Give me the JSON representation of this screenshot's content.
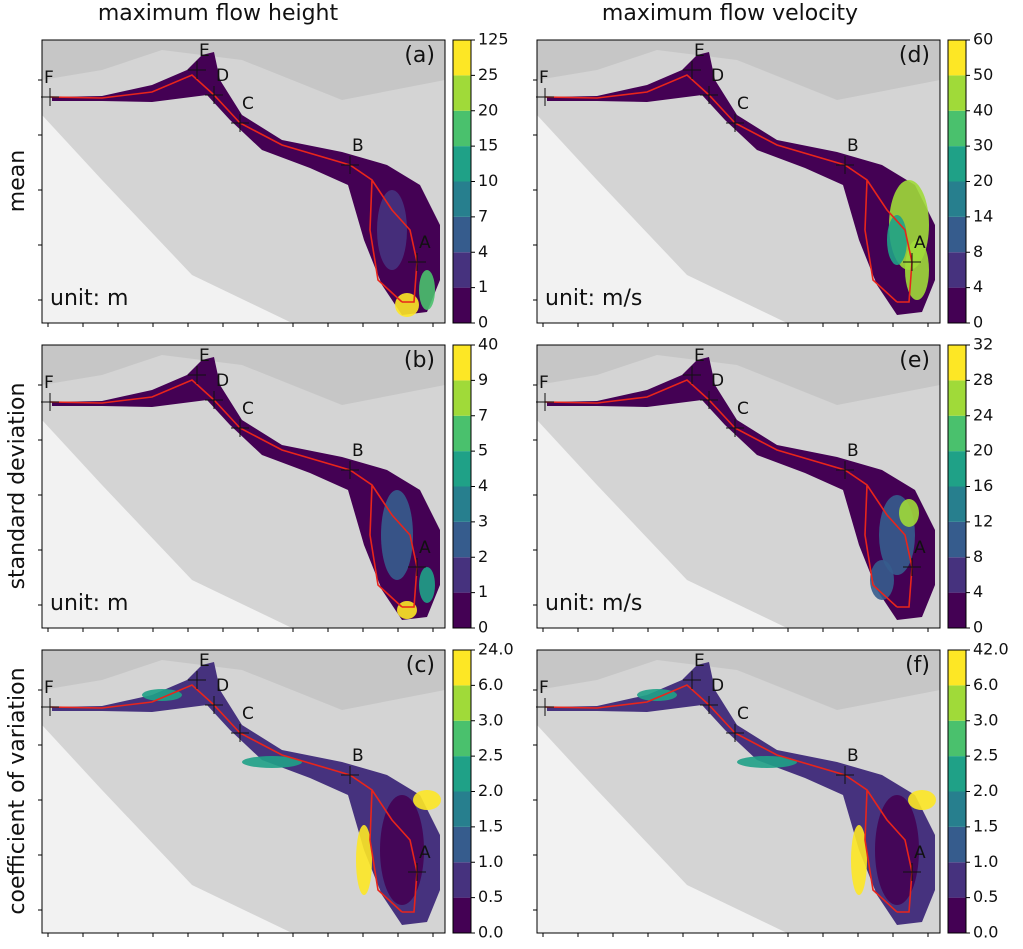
{
  "column_titles": [
    "maximum flow height",
    "maximum flow velocity"
  ],
  "row_titles": [
    "mean",
    "standard deviation",
    "coefficient of variation"
  ],
  "point_labels": [
    "A",
    "B",
    "C",
    "D",
    "E",
    "F"
  ],
  "panels": [
    {
      "label": "(a)",
      "unit": "unit: m",
      "colorbar": [
        "0",
        "1",
        "4",
        "7",
        "10",
        "15",
        "20",
        "25",
        "125"
      ]
    },
    {
      "label": "(d)",
      "unit": "unit: m/s",
      "colorbar": [
        "0",
        "4",
        "8",
        "14",
        "20",
        "30",
        "40",
        "50",
        "60"
      ]
    },
    {
      "label": "(b)",
      "unit": "unit: m",
      "colorbar": [
        "0",
        "1",
        "2",
        "3",
        "4",
        "5",
        "7",
        "9",
        "40"
      ]
    },
    {
      "label": "(e)",
      "unit": "unit: m/s",
      "colorbar": [
        "0",
        "4",
        "8",
        "12",
        "16",
        "20",
        "24",
        "28",
        "32"
      ]
    },
    {
      "label": "(c)",
      "colorbar": [
        "0.0",
        "0.5",
        "1.0",
        "1.5",
        "2.0",
        "2.5",
        "3.0",
        "6.0",
        "24.0"
      ]
    },
    {
      "label": "(f)",
      "colorbar": [
        "0.0",
        "0.5",
        "1.0",
        "1.5",
        "2.0",
        "2.5",
        "3.0",
        "6.0",
        "42.0"
      ]
    }
  ]
}
